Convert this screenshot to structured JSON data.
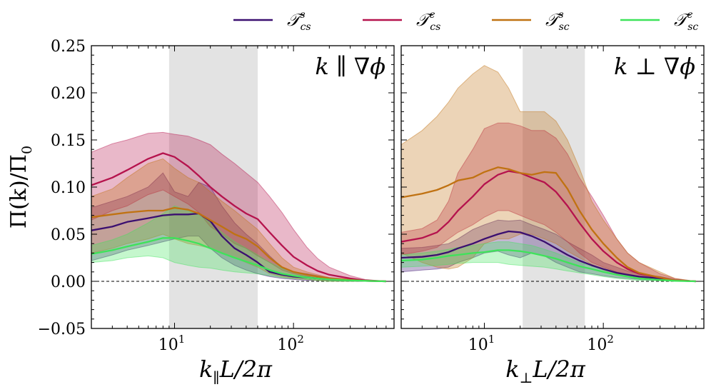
{
  "figure": {
    "ylabel": "Π(k)/Π",
    "ylabel_sub": "0",
    "legend": [
      {
        "name": "𝒯",
        "sup": "s",
        "sub": "cs",
        "color": "#3b0f70"
      },
      {
        "name": "𝒯",
        "sup": "c",
        "sub": "cs",
        "color": "#b5134d"
      },
      {
        "name": "𝒯",
        "sup": "s",
        "sub": "sc",
        "color": "#c07212"
      },
      {
        "name": "𝒯",
        "sup": "c",
        "sub": "sc",
        "color": "#3ee35a"
      }
    ]
  },
  "chart_data": [
    {
      "type": "area",
      "panel_annotation": "k ∥ ∇ϕ",
      "xlabel": "k",
      "xlabel_sub": "∥",
      "xlabel_rest": "L/2π",
      "xscale": "log",
      "xlim": [
        2,
        700
      ],
      "ylim": [
        -0.05,
        0.25
      ],
      "yticks": [
        "0.25",
        "0.20",
        "0.15",
        "0.10",
        "0.05",
        "0.00",
        "−0.05"
      ],
      "ytick_values": [
        0.25,
        0.2,
        0.15,
        0.1,
        0.05,
        0.0,
        -0.05
      ],
      "xticks": [
        {
          "base": "10",
          "exp": "1",
          "value": 10
        },
        {
          "base": "10",
          "exp": "2",
          "value": 100
        }
      ],
      "shaded_band": [
        9,
        50
      ],
      "zero_line": true,
      "x": [
        2,
        3,
        4,
        6,
        8,
        10,
        13,
        16,
        20,
        25,
        32,
        40,
        50,
        63,
        80,
        100,
        130,
        160,
        200,
        300,
        400,
        600
      ],
      "series": [
        {
          "name": "T_cs^s",
          "color": "#3b0f70",
          "values": [
            0.054,
            0.058,
            0.063,
            0.067,
            0.07,
            0.071,
            0.071,
            0.072,
            0.064,
            0.048,
            0.035,
            0.028,
            0.02,
            0.01,
            0.007,
            0.005,
            0.004,
            0.003,
            0.002,
            0.001,
            0.0005,
            0
          ],
          "lower": [
            0.022,
            0.028,
            0.033,
            0.038,
            0.042,
            0.045,
            0.048,
            0.048,
            0.035,
            0.025,
            0.017,
            0.012,
            0.008,
            0.005,
            0.003,
            0.002,
            0.001,
            0.001,
            0.0005,
            0,
            0,
            0
          ],
          "upper": [
            0.078,
            0.085,
            0.09,
            0.1,
            0.115,
            0.095,
            0.09,
            0.105,
            0.1,
            0.08,
            0.062,
            0.05,
            0.04,
            0.027,
            0.015,
            0.01,
            0.008,
            0.006,
            0.004,
            0.002,
            0.001,
            0
          ]
        },
        {
          "name": "T_cs^c",
          "color": "#b5134d",
          "values": [
            0.102,
            0.11,
            0.118,
            0.13,
            0.136,
            0.132,
            0.122,
            0.112,
            0.1,
            0.09,
            0.08,
            0.072,
            0.066,
            0.052,
            0.038,
            0.026,
            0.017,
            0.011,
            0.007,
            0.003,
            0.001,
            0
          ],
          "lower": [
            0.065,
            0.075,
            0.08,
            0.092,
            0.097,
            0.09,
            0.082,
            0.073,
            0.058,
            0.05,
            0.04,
            0.035,
            0.027,
            0.02,
            0.012,
            0.008,
            0.005,
            0.003,
            0.002,
            0.001,
            0,
            0
          ],
          "upper": [
            0.137,
            0.146,
            0.15,
            0.157,
            0.158,
            0.156,
            0.154,
            0.15,
            0.145,
            0.135,
            0.125,
            0.115,
            0.105,
            0.09,
            0.073,
            0.055,
            0.036,
            0.024,
            0.015,
            0.006,
            0.002,
            0
          ]
        },
        {
          "name": "T_sc^s",
          "color": "#c07212",
          "values": [
            0.068,
            0.071,
            0.073,
            0.075,
            0.075,
            0.078,
            0.076,
            0.072,
            0.065,
            0.058,
            0.05,
            0.045,
            0.037,
            0.025,
            0.015,
            0.01,
            0.007,
            0.005,
            0.003,
            0.0015,
            0.0005,
            0
          ],
          "lower": [
            0.03,
            0.035,
            0.04,
            0.045,
            0.05,
            0.045,
            0.04,
            0.038,
            0.035,
            0.03,
            0.025,
            0.02,
            0.015,
            0.008,
            0.005,
            0.003,
            0.002,
            0.001,
            0,
            0,
            0,
            0
          ],
          "upper": [
            0.09,
            0.098,
            0.11,
            0.125,
            0.13,
            0.12,
            0.11,
            0.105,
            0.095,
            0.085,
            0.075,
            0.065,
            0.055,
            0.04,
            0.025,
            0.015,
            0.01,
            0.007,
            0.004,
            0.002,
            0.001,
            0
          ]
        },
        {
          "name": "T_sc^c",
          "color": "#3ee35a",
          "values": [
            0.029,
            0.033,
            0.037,
            0.042,
            0.046,
            0.046,
            0.043,
            0.04,
            0.035,
            0.03,
            0.025,
            0.021,
            0.017,
            0.012,
            0.008,
            0.006,
            0.004,
            0.003,
            0.002,
            0.001,
            0.0005,
            0
          ],
          "lower": [
            0.02,
            0.022,
            0.025,
            0.027,
            0.025,
            0.02,
            0.017,
            0.015,
            0.014,
            0.012,
            0.01,
            0.009,
            0.008,
            0.006,
            0.004,
            0.003,
            0.002,
            0.001,
            0,
            0,
            0,
            0
          ],
          "upper": [
            0.038,
            0.044,
            0.05,
            0.062,
            0.072,
            0.08,
            0.075,
            0.07,
            0.062,
            0.052,
            0.042,
            0.035,
            0.028,
            0.02,
            0.014,
            0.01,
            0.007,
            0.005,
            0.003,
            0.002,
            0.001,
            0
          ]
        }
      ]
    },
    {
      "type": "area",
      "panel_annotation": "k ⊥ ∇ϕ",
      "xlabel": "k",
      "xlabel_sub": "⊥",
      "xlabel_rest": "L/2π",
      "xscale": "log",
      "xlim": [
        2,
        700
      ],
      "ylim": [
        -0.05,
        0.25
      ],
      "yticks": [],
      "ytick_values": [
        0.25,
        0.2,
        0.15,
        0.1,
        0.05,
        0.0,
        -0.05
      ],
      "xticks": [
        {
          "base": "10",
          "exp": "1",
          "value": 10
        },
        {
          "base": "10",
          "exp": "2",
          "value": 100
        }
      ],
      "shaded_band": [
        21,
        70
      ],
      "zero_line": true,
      "x": [
        2,
        3,
        4,
        5,
        6,
        8,
        10,
        13,
        16,
        20,
        25,
        32,
        40,
        50,
        63,
        80,
        100,
        130,
        160,
        200,
        300,
        400,
        600
      ],
      "series": [
        {
          "name": "T_cs^s",
          "color": "#3b0f70",
          "values": [
            0.025,
            0.026,
            0.028,
            0.031,
            0.035,
            0.04,
            0.045,
            0.05,
            0.053,
            0.052,
            0.048,
            0.042,
            0.035,
            0.028,
            0.022,
            0.017,
            0.013,
            0.009,
            0.007,
            0.005,
            0.003,
            0.001,
            0
          ],
          "lower": [
            0.01,
            0.012,
            0.013,
            0.015,
            0.02,
            0.025,
            0.03,
            0.032,
            0.028,
            0.025,
            0.03,
            0.027,
            0.02,
            0.015,
            0.01,
            0.008,
            0.006,
            0.004,
            0.003,
            0.002,
            0.001,
            0.0005,
            0
          ],
          "upper": [
            0.035,
            0.036,
            0.038,
            0.04,
            0.045,
            0.055,
            0.06,
            0.065,
            0.064,
            0.065,
            0.06,
            0.055,
            0.05,
            0.042,
            0.035,
            0.028,
            0.02,
            0.015,
            0.011,
            0.008,
            0.005,
            0.002,
            0
          ]
        },
        {
          "name": "T_cs^c",
          "color": "#b5134d",
          "values": [
            0.042,
            0.046,
            0.052,
            0.063,
            0.075,
            0.09,
            0.103,
            0.113,
            0.117,
            0.115,
            0.11,
            0.105,
            0.095,
            0.08,
            0.062,
            0.045,
            0.032,
            0.02,
            0.013,
            0.008,
            0.004,
            0.001,
            0
          ],
          "lower": [
            0.028,
            0.032,
            0.036,
            0.045,
            0.052,
            0.06,
            0.068,
            0.075,
            0.075,
            0.07,
            0.065,
            0.06,
            0.052,
            0.042,
            0.03,
            0.02,
            0.015,
            0.01,
            0.007,
            0.004,
            0.002,
            0.0005,
            0
          ],
          "upper": [
            0.052,
            0.056,
            0.065,
            0.085,
            0.115,
            0.14,
            0.162,
            0.168,
            0.168,
            0.165,
            0.16,
            0.16,
            0.152,
            0.135,
            0.11,
            0.09,
            0.07,
            0.045,
            0.03,
            0.02,
            0.008,
            0.003,
            0
          ]
        },
        {
          "name": "T_sc^s",
          "color": "#c07212",
          "values": [
            0.089,
            0.093,
            0.097,
            0.102,
            0.107,
            0.11,
            0.116,
            0.121,
            0.119,
            0.115,
            0.113,
            0.116,
            0.115,
            0.098,
            0.075,
            0.055,
            0.04,
            0.025,
            0.015,
            0.009,
            0.004,
            0.001,
            0
          ],
          "lower": [
            0.03,
            0.02,
            0.015,
            0.013,
            0.015,
            0.025,
            0.04,
            0.045,
            0.045,
            0.05,
            0.05,
            0.045,
            0.04,
            0.032,
            0.025,
            0.018,
            0.012,
            0.008,
            0.005,
            0.003,
            0.001,
            0.0005,
            0
          ],
          "upper": [
            0.145,
            0.16,
            0.175,
            0.19,
            0.205,
            0.22,
            0.229,
            0.222,
            0.205,
            0.18,
            0.18,
            0.18,
            0.17,
            0.15,
            0.12,
            0.085,
            0.065,
            0.045,
            0.03,
            0.02,
            0.01,
            0.003,
            0
          ]
        },
        {
          "name": "T_sc^c",
          "color": "#3ee35a",
          "values": [
            0.022,
            0.023,
            0.025,
            0.027,
            0.028,
            0.03,
            0.031,
            0.033,
            0.033,
            0.032,
            0.03,
            0.027,
            0.024,
            0.02,
            0.016,
            0.013,
            0.01,
            0.007,
            0.005,
            0.003,
            0.0015,
            0.0005,
            0
          ],
          "lower": [
            0.015,
            0.016,
            0.017,
            0.018,
            0.019,
            0.02,
            0.02,
            0.02,
            0.018,
            0.017,
            0.016,
            0.015,
            0.013,
            0.011,
            0.009,
            0.007,
            0.005,
            0.003,
            0.002,
            0.001,
            0.0005,
            0,
            0
          ],
          "upper": [
            0.028,
            0.03,
            0.032,
            0.034,
            0.036,
            0.038,
            0.04,
            0.042,
            0.042,
            0.04,
            0.038,
            0.034,
            0.03,
            0.025,
            0.02,
            0.016,
            0.012,
            0.009,
            0.006,
            0.004,
            0.002,
            0.001,
            0
          ]
        }
      ]
    }
  ]
}
